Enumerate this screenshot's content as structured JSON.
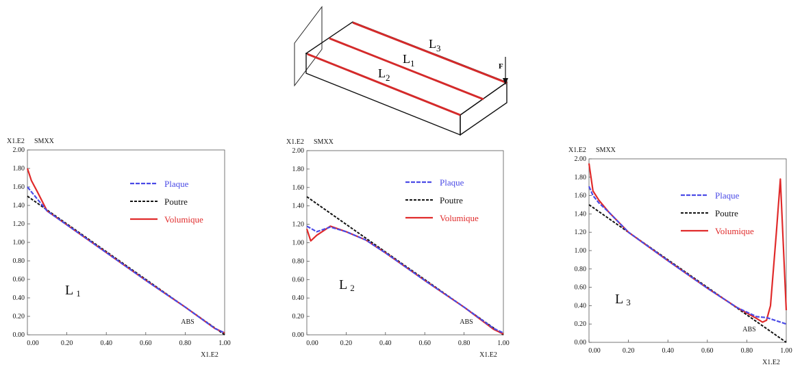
{
  "diagram": {
    "labels": {
      "l1": "L",
      "l1_sub": "1",
      "l2": "L",
      "l2_sub": "2",
      "l3": "L",
      "l3_sub": "3",
      "force": "F"
    }
  },
  "colors": {
    "plaque": "#4a4ae6",
    "poutre": "#111111",
    "volumique": "#e02a2a",
    "beam_line": "#d42a2a"
  },
  "chart_data": [
    {
      "type": "line",
      "annotation": "L",
      "annotation_sub": "1",
      "y_multiplier": "X1.E2",
      "ylabel": "SMXX",
      "x_multiplier": "X1.E2",
      "xlabel": "ABS",
      "xlim": [
        0,
        1.0
      ],
      "ylim": [
        0,
        2.0
      ],
      "xticks": [
        "0.00",
        "0.20",
        "0.40",
        "0.60",
        "0.80",
        "1.00"
      ],
      "yticks": [
        "0.00",
        "0.20",
        "0.40",
        "0.60",
        "0.80",
        "1.00",
        "1.20",
        "1.40",
        "1.60",
        "1.80",
        "2.00"
      ],
      "legend": [
        "Plaque",
        "Poutre",
        "Volumique"
      ],
      "series": [
        {
          "name": "Plaque",
          "x": [
            0,
            0.05,
            0.1,
            0.2,
            0.4,
            0.6,
            0.8,
            0.95,
            1.0
          ],
          "y": [
            1.6,
            1.47,
            1.34,
            1.19,
            0.89,
            0.59,
            0.3,
            0.07,
            0.02
          ]
        },
        {
          "name": "Poutre",
          "x": [
            0,
            1.0
          ],
          "y": [
            1.5,
            0.0
          ]
        },
        {
          "name": "Volumique",
          "x": [
            0,
            0.02,
            0.05,
            0.1,
            0.2,
            0.4,
            0.6,
            0.8,
            0.95,
            1.0
          ],
          "y": [
            1.8,
            1.67,
            1.55,
            1.34,
            1.19,
            0.89,
            0.59,
            0.3,
            0.07,
            0.02
          ]
        }
      ]
    },
    {
      "type": "line",
      "annotation": "L",
      "annotation_sub": "2",
      "y_multiplier": "X1.E2",
      "ylabel": "SMXX",
      "x_multiplier": "X1.E2",
      "xlabel": "ABS",
      "xlim": [
        0,
        1.0
      ],
      "ylim": [
        0,
        2.0
      ],
      "xticks": [
        "0.00",
        "0.20",
        "0.40",
        "0.60",
        "0.80",
        "1.00"
      ],
      "yticks": [
        "0.00",
        "0.20",
        "0.40",
        "0.60",
        "0.80",
        "1.00",
        "1.20",
        "1.40",
        "1.60",
        "1.80",
        "2.00"
      ],
      "legend": [
        "Plaque",
        "Poutre",
        "Volumique"
      ],
      "series": [
        {
          "name": "Plaque",
          "x": [
            0,
            0.05,
            0.12,
            0.2,
            0.3,
            0.4,
            0.6,
            0.8,
            0.95,
            1.0
          ],
          "y": [
            1.18,
            1.12,
            1.17,
            1.12,
            1.03,
            0.89,
            0.59,
            0.3,
            0.07,
            0.02
          ]
        },
        {
          "name": "Poutre",
          "x": [
            0,
            1.0
          ],
          "y": [
            1.5,
            0.0
          ]
        },
        {
          "name": "Volumique",
          "x": [
            0,
            0.02,
            0.05,
            0.12,
            0.2,
            0.3,
            0.4,
            0.6,
            0.8,
            0.95,
            1.0
          ],
          "y": [
            1.15,
            1.02,
            1.08,
            1.18,
            1.12,
            1.03,
            0.89,
            0.59,
            0.3,
            0.06,
            0.01
          ]
        }
      ]
    },
    {
      "type": "line",
      "annotation": "L",
      "annotation_sub": "3",
      "y_multiplier": "X1.E2",
      "ylabel": "SMXX",
      "x_multiplier": "X1.E2",
      "xlabel": "ABS",
      "xlim": [
        0,
        1.0
      ],
      "ylim": [
        0,
        2.0
      ],
      "xticks": [
        "0.00",
        "0.20",
        "0.40",
        "0.60",
        "0.80",
        "1.00"
      ],
      "yticks": [
        "0.00",
        "0.20",
        "0.40",
        "0.60",
        "0.80",
        "1.00",
        "1.20",
        "1.40",
        "1.60",
        "1.80",
        "2.00"
      ],
      "legend": [
        "Plaque",
        "Poutre",
        "Volumique"
      ],
      "series": [
        {
          "name": "Plaque",
          "x": [
            0,
            0.02,
            0.05,
            0.1,
            0.2,
            0.4,
            0.6,
            0.75,
            0.85,
            0.9,
            1.0
          ],
          "y": [
            1.7,
            1.6,
            1.52,
            1.42,
            1.2,
            0.89,
            0.59,
            0.38,
            0.28,
            0.27,
            0.2
          ]
        },
        {
          "name": "Poutre",
          "x": [
            0,
            1.0
          ],
          "y": [
            1.5,
            0.0
          ]
        },
        {
          "name": "Volumique",
          "x": [
            0,
            0.02,
            0.05,
            0.1,
            0.2,
            0.4,
            0.6,
            0.75,
            0.85,
            0.88,
            0.9,
            0.92,
            0.95,
            0.97,
            1.0
          ],
          "y": [
            1.95,
            1.65,
            1.55,
            1.42,
            1.2,
            0.89,
            0.59,
            0.38,
            0.26,
            0.22,
            0.24,
            0.4,
            1.2,
            1.78,
            0.35
          ]
        }
      ]
    }
  ]
}
